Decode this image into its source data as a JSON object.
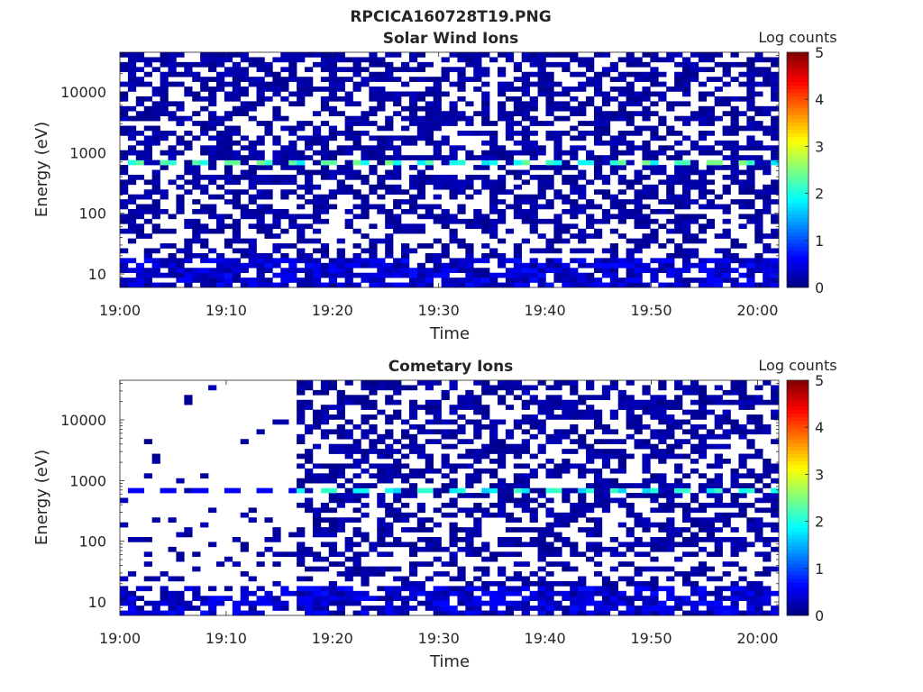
{
  "figure_title": "RPCICA160728T19.PNG",
  "chart_data": [
    {
      "type": "heatmap",
      "title": "Solar Wind Ions",
      "xlabel": "Time",
      "ylabel": "Energy (eV)",
      "y_scale": "log",
      "ylim": [
        6,
        45000
      ],
      "xlim": [
        "19:00",
        "20:02"
      ],
      "x_ticks": [
        "19:00",
        "19:10",
        "19:20",
        "19:30",
        "19:40",
        "19:50",
        "20:00"
      ],
      "y_ticks": [
        "10",
        "100",
        "1000",
        "10000"
      ],
      "colorbar": {
        "label": "Log counts",
        "range": [
          0,
          5
        ],
        "ticks": [
          "0",
          "1",
          "2",
          "3",
          "4",
          "5"
        ],
        "colormap": "jet"
      },
      "notable_features": [
        {
          "energy_eV": 650,
          "log_counts": 2.3,
          "description": "periodic bright band near 650 eV"
        },
        {
          "energy_range_eV": [
            8,
            20
          ],
          "log_counts": 0.5,
          "description": "dense low-energy counts"
        }
      ],
      "background_log_counts": 0.1,
      "sparse_before": null
    },
    {
      "type": "heatmap",
      "title": "Cometary Ions",
      "xlabel": "Time",
      "ylabel": "Energy (eV)",
      "y_scale": "log",
      "ylim": [
        6,
        45000
      ],
      "xlim": [
        "19:00",
        "20:02"
      ],
      "x_ticks": [
        "19:00",
        "19:10",
        "19:20",
        "19:30",
        "19:40",
        "19:50",
        "20:00"
      ],
      "y_ticks": [
        "10",
        "100",
        "1000",
        "10000"
      ],
      "colorbar": {
        "label": "Log counts",
        "range": [
          0,
          5
        ],
        "ticks": [
          "0",
          "1",
          "2",
          "3",
          "4",
          "5"
        ],
        "colormap": "jet"
      },
      "notable_features": [
        {
          "energy_eV": 650,
          "log_counts": 2.0,
          "description": "periodic band near 650 eV"
        },
        {
          "energy_range_eV": [
            8,
            20
          ],
          "log_counts": 0.6,
          "description": "dense low-energy counts"
        }
      ],
      "background_log_counts": 0.1,
      "sparse_before": "19:17"
    }
  ]
}
